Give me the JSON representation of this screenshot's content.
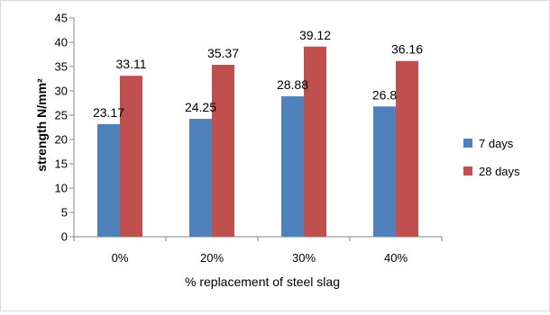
{
  "chart_data": {
    "type": "bar",
    "categories": [
      "0%",
      "20%",
      "30%",
      "40%"
    ],
    "series": [
      {
        "name": "7 days",
        "values": [
          23.17,
          24.25,
          28.88,
          26.8
        ],
        "labels": [
          "23.17",
          "24.25",
          "28.88",
          "26.8"
        ],
        "color": "#4f81bd"
      },
      {
        "name": "28 days",
        "values": [
          33.11,
          35.37,
          39.12,
          36.16
        ],
        "labels": [
          "33.11",
          "35.37",
          "39.12",
          "36.16"
        ],
        "color": "#c0504d"
      }
    ],
    "xlabel": "% replacement of steel slag",
    "ylabel": "strength N/mm²",
    "ylim": [
      0,
      45
    ],
    "yticks": [
      0,
      5,
      10,
      15,
      20,
      25,
      30,
      35,
      40,
      45
    ],
    "grid": false,
    "legend_position": "right"
  }
}
